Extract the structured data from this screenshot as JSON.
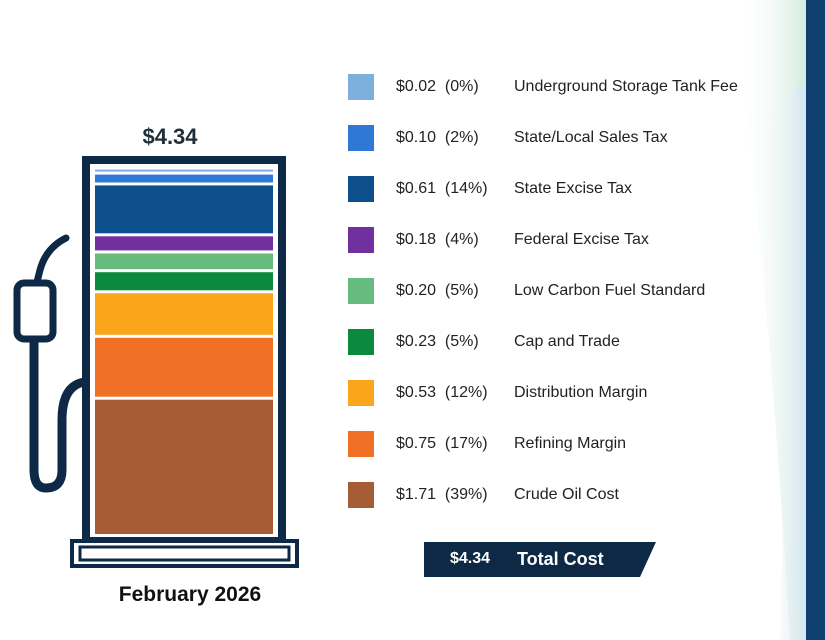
{
  "colors": {
    "navy": "#0d2945",
    "side_bar": "#0e3f6e"
  },
  "chart_data": {
    "type": "bar",
    "stacked": true,
    "total_label": "$4.34",
    "date_label": "February 2026",
    "categories": [
      "Underground Storage Tank Fee",
      "State/Local Sales Tax",
      "State Excise Tax",
      "Federal Excise Tax",
      "Low Carbon Fuel Standard",
      "Cap and Trade",
      "Distribution Margin",
      "Refining Margin",
      "Crude Oil Cost"
    ],
    "values": [
      0.02,
      0.1,
      0.61,
      0.18,
      0.2,
      0.23,
      0.53,
      0.75,
      1.71
    ],
    "amount_labels": [
      "$0.02",
      "$0.10",
      "$0.61",
      "$0.18",
      "$0.20",
      "$0.23",
      "$0.53",
      "$0.75",
      "$1.71"
    ],
    "percent_labels": [
      "(0%)",
      "(2%)",
      "(14%)",
      "(4%)",
      "(5%)",
      "(5%)",
      "(12%)",
      "(17%)",
      "(39%)"
    ],
    "colors": [
      "#7dafdc",
      "#2f78d4",
      "#0c4f8a",
      "#7030a0",
      "#66bb7f",
      "#0b8a3e",
      "#f9a61a",
      "#f07125",
      "#a65d35"
    ],
    "total": {
      "value": "$4.34",
      "label": "Total Cost"
    }
  }
}
